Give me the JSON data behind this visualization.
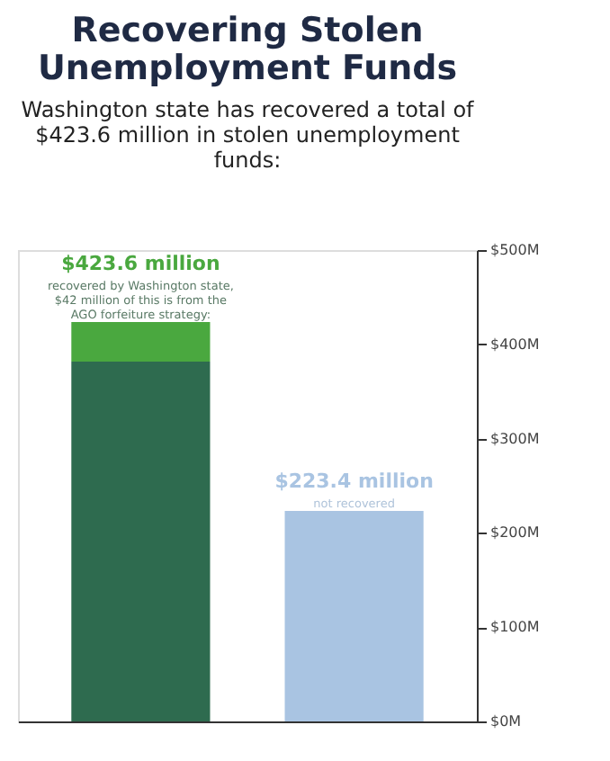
{
  "chart_data": {
    "type": "bar",
    "title": "Recovering Stolen Unemployment Funds",
    "subtitle": "Washington state has recovered a total of $423.6 million in stolen unemployment funds:",
    "categories": [
      null,
      null
    ],
    "stacked": true,
    "series": [
      {
        "colors": [
          "#2e6b4f",
          "#a9c4e2"
        ],
        "values": [
          381.6,
          223.4
        ]
      },
      {
        "color": "#4aa83f",
        "values": [
          42,
          null
        ]
      }
    ],
    "totals": [
      "$423.6 million",
      "$223.4 million"
    ],
    "annotations": [
      "recovered by Washington state, $42 million of this is from the AGO forfeiture strategy:",
      "not recovered"
    ],
    "ylim": [
      0,
      500
    ],
    "yticks": [
      {
        "value": 0,
        "label": "$0M"
      },
      {
        "value": 100,
        "label": "$100M"
      },
      {
        "value": 200,
        "label": "$200M"
      },
      {
        "value": 300,
        "label": "$300M"
      },
      {
        "value": 400,
        "label": "$400M"
      },
      {
        "value": 500,
        "label": "$500M"
      }
    ],
    "grid": false
  }
}
